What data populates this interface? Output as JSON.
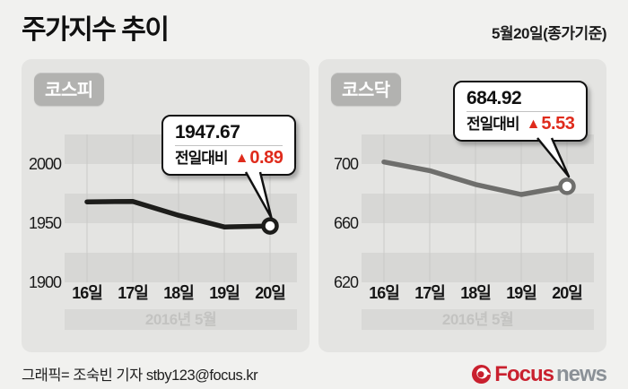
{
  "title": "주가지수 추이",
  "date_note": "5월20일(종가기준)",
  "chart_data": [
    {
      "type": "line",
      "title": "코스피",
      "categories": [
        "16일",
        "17일",
        "18일",
        "19일",
        "20일"
      ],
      "values": [
        1968.0,
        1968.4,
        1956.7,
        1946.8,
        1947.67
      ],
      "y_ticks": [
        2000,
        1950,
        1900
      ],
      "ylim": [
        1900,
        2025
      ],
      "x_caption": "2016년 5월",
      "line_color": "#1d1d1b",
      "grid": "on",
      "callout": {
        "value": "1947.67",
        "label": "전일대비",
        "up_symbol": "▲",
        "delta": "0.89"
      }
    },
    {
      "type": "line",
      "title": "코스닥",
      "categories": [
        "16일",
        "17일",
        "18일",
        "19일",
        "20일"
      ],
      "values": [
        701.4,
        695.5,
        686.2,
        679.4,
        684.92
      ],
      "y_ticks": [
        700,
        660,
        620
      ],
      "ylim": [
        620,
        720
      ],
      "x_caption": "2016년 5월",
      "line_color": "#6e6e6c",
      "grid": "on",
      "callout": {
        "value": "684.92",
        "label": "전일대비",
        "up_symbol": "▲",
        "delta": "5.53"
      }
    }
  ],
  "footer": {
    "credit": "그래픽= 조숙빈 기자 stby123@focus.kr",
    "logo": {
      "brand": "Focus",
      "suffix": "news"
    }
  },
  "colors": {
    "page_bg": "#f1f1ef",
    "panel_bg": "#e4e4e2",
    "stripe": "#d7d7d5",
    "caption_band": "#d9d9d7",
    "caption_text": "#c3c3c1",
    "grid_line": "#cacac8",
    "pill_bg": "#b2b2b0",
    "text_dark": "#1b1b1b",
    "accent_red": "#df2b1c",
    "logo_red": "#c9202e",
    "logo_gray": "#8b9197"
  }
}
